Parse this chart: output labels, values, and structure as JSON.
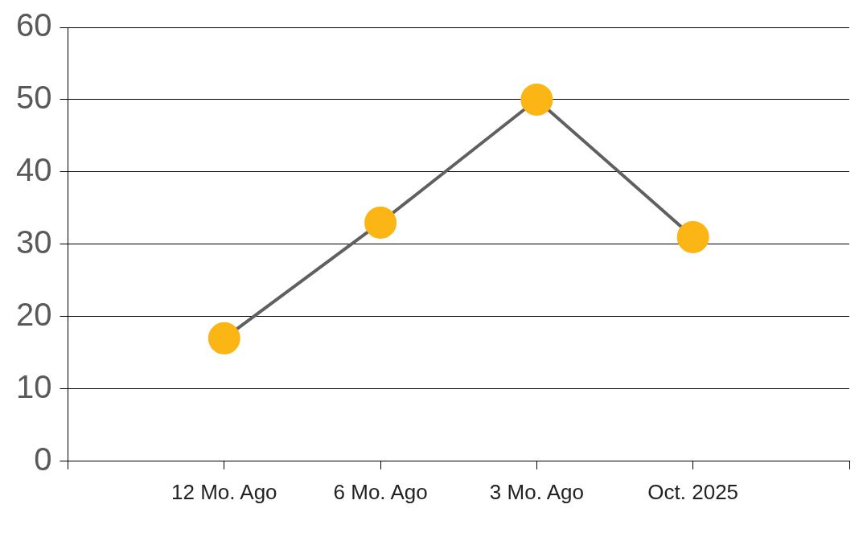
{
  "chart_data": {
    "type": "line",
    "categories": [
      "12 Mo. Ago",
      "6 Mo. Ago",
      "3 Mo. Ago",
      "Oct. 2025"
    ],
    "series": [
      {
        "color": "#fbb615",
        "values": [
          17,
          33,
          50,
          31
        ]
      }
    ],
    "ylim": [
      0,
      60
    ],
    "yticks": [
      0,
      10,
      20,
      30,
      40,
      50,
      60
    ],
    "grid": "y",
    "legend": false,
    "marker": "circle",
    "line_style": "solid"
  }
}
